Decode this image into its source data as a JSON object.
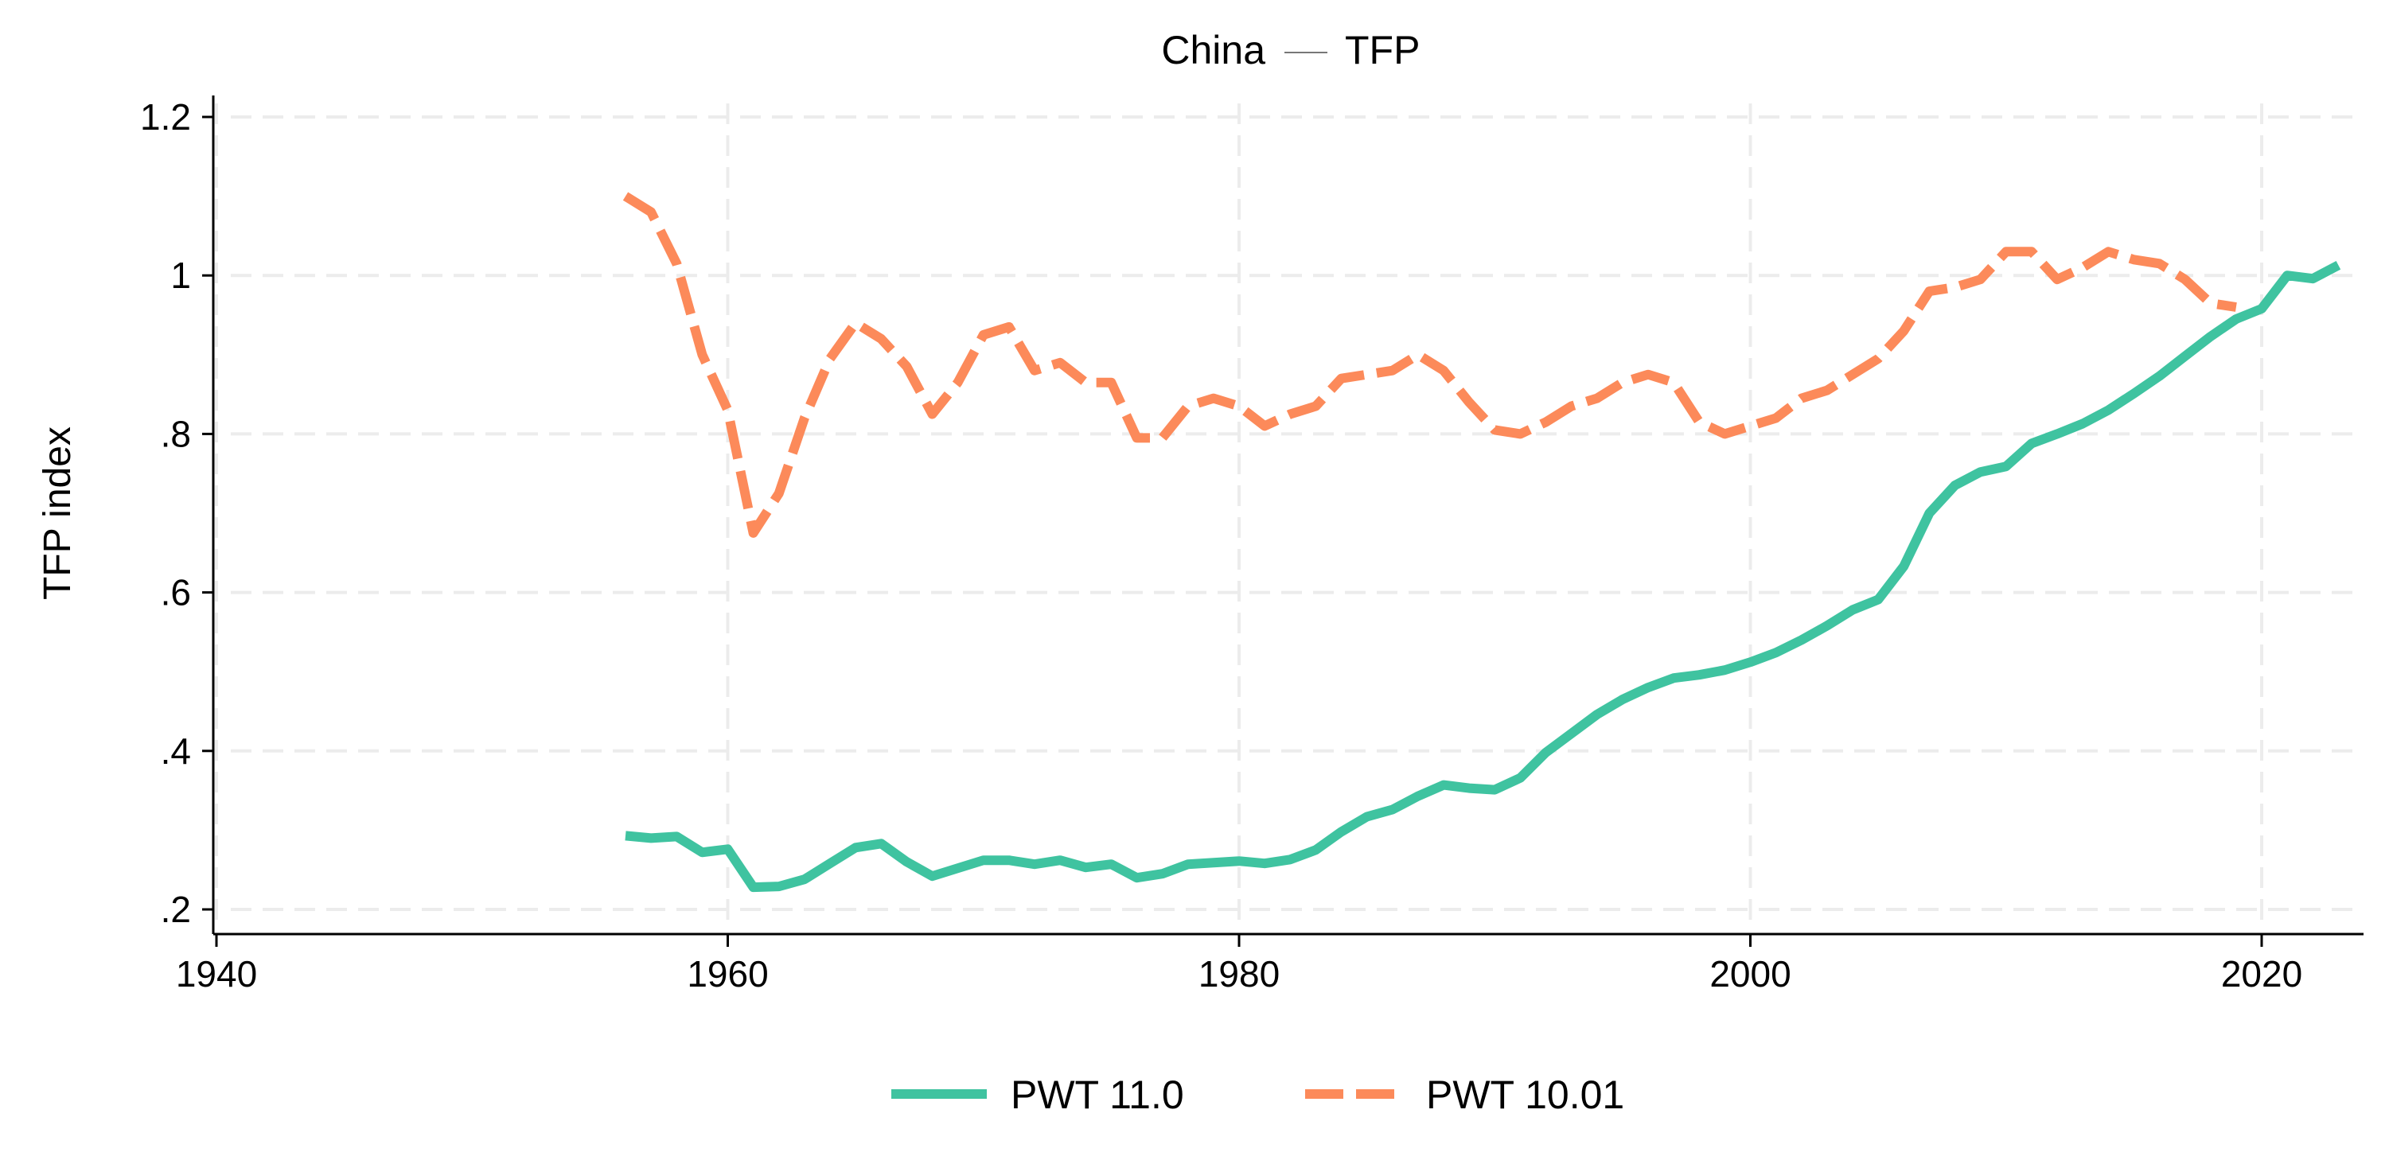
{
  "chart_data": {
    "type": "line",
    "title": "China — TFP",
    "title_parts": {
      "left": "China",
      "right": "TFP"
    },
    "xlabel": "",
    "ylabel": "TFP index",
    "xlim": [
      1940,
      2024
    ],
    "ylim": [
      0.2,
      1.2
    ],
    "x_ticks": [
      1940,
      1960,
      1980,
      2000,
      2020
    ],
    "x_tick_labels": [
      "1940",
      "1960",
      "1980",
      "2000",
      "2020"
    ],
    "y_ticks": [
      0.2,
      0.4,
      0.6,
      0.8,
      1.0,
      1.2
    ],
    "y_tick_labels": [
      ".2",
      ".4",
      ".6",
      ".8",
      "1",
      "1.2"
    ],
    "grid": true,
    "legend_position": "bottom",
    "series": [
      {
        "name": "PWT 11.0",
        "color": "#3fc3a0",
        "style": "solid",
        "x": [
          1956,
          1957,
          1958,
          1959,
          1960,
          1961,
          1962,
          1963,
          1964,
          1965,
          1966,
          1967,
          1968,
          1969,
          1970,
          1971,
          1972,
          1973,
          1974,
          1975,
          1976,
          1977,
          1978,
          1979,
          1980,
          1981,
          1982,
          1983,
          1984,
          1985,
          1986,
          1987,
          1988,
          1989,
          1990,
          1991,
          1992,
          1993,
          1994,
          1995,
          1996,
          1997,
          1998,
          1999,
          2000,
          2001,
          2002,
          2003,
          2004,
          2005,
          2006,
          2007,
          2008,
          2009,
          2010,
          2011,
          2012,
          2013,
          2014,
          2015,
          2016,
          2017,
          2018,
          2019,
          2020,
          2021,
          2022,
          2023
        ],
        "y": [
          0.293,
          0.29,
          0.292,
          0.272,
          0.276,
          0.228,
          0.229,
          0.238,
          0.258,
          0.278,
          0.283,
          0.26,
          0.242,
          0.252,
          0.262,
          0.262,
          0.257,
          0.262,
          0.253,
          0.257,
          0.24,
          0.245,
          0.257,
          0.259,
          0.261,
          0.258,
          0.263,
          0.275,
          0.298,
          0.317,
          0.326,
          0.343,
          0.357,
          0.353,
          0.351,
          0.366,
          0.398,
          0.422,
          0.446,
          0.465,
          0.48,
          0.492,
          0.496,
          0.502,
          0.512,
          0.524,
          0.54,
          0.558,
          0.578,
          0.591,
          0.633,
          0.7,
          0.735,
          0.752,
          0.759,
          0.788,
          0.8,
          0.813,
          0.83,
          0.851,
          0.873,
          0.898,
          0.923,
          0.945,
          0.958,
          1.0,
          0.996,
          1.013
        ]
      },
      {
        "name": "PWT 10.01",
        "color": "#fc8a5a",
        "style": "dashed",
        "x": [
          1956,
          1957,
          1958,
          1959,
          1960,
          1961,
          1962,
          1963,
          1964,
          1965,
          1966,
          1967,
          1968,
          1969,
          1970,
          1971,
          1972,
          1973,
          1974,
          1975,
          1976,
          1977,
          1978,
          1979,
          1980,
          1981,
          1982,
          1983,
          1984,
          1985,
          1986,
          1987,
          1988,
          1989,
          1990,
          1991,
          1992,
          1993,
          1994,
          1995,
          1996,
          1997,
          1998,
          1999,
          2000,
          2001,
          2002,
          2003,
          2004,
          2005,
          2006,
          2007,
          2008,
          2009,
          2010,
          2011,
          2012,
          2013,
          2014,
          2015,
          2016,
          2017,
          2018,
          2019
        ],
        "y": [
          1.1,
          1.08,
          1.015,
          0.9,
          0.83,
          0.675,
          0.725,
          0.82,
          0.895,
          0.94,
          0.92,
          0.885,
          0.825,
          0.865,
          0.925,
          0.935,
          0.88,
          0.89,
          0.865,
          0.865,
          0.795,
          0.795,
          0.835,
          0.845,
          0.835,
          0.81,
          0.825,
          0.835,
          0.87,
          0.875,
          0.88,
          0.9,
          0.88,
          0.84,
          0.805,
          0.8,
          0.815,
          0.835,
          0.845,
          0.865,
          0.875,
          0.865,
          0.815,
          0.8,
          0.81,
          0.82,
          0.845,
          0.855,
          0.875,
          0.895,
          0.93,
          0.98,
          0.985,
          0.995,
          1.03,
          1.03,
          0.995,
          1.01,
          1.03,
          1.02,
          1.015,
          0.995,
          0.965,
          0.96
        ]
      }
    ]
  }
}
